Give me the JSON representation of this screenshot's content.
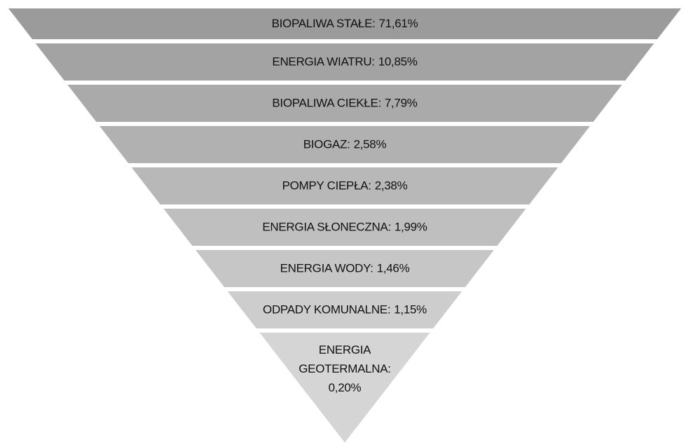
{
  "chart_data": {
    "type": "funnel",
    "categories": [
      "BIOPALIWA STAŁE:",
      "ENERGIA WIATRU:",
      "BIOPALIWA CIEKŁE:",
      "BIOGAZ:",
      "POMPY CIEPŁA:",
      "ENERGIA SŁONECZNA:",
      "ENERGIA WODY:",
      "ODPADY KOMUNALNE:",
      "ENERGIA GEOTERMALNA:"
    ],
    "values": [
      71.61,
      10.85,
      7.79,
      2.58,
      2.38,
      1.99,
      1.46,
      1.15,
      0.2
    ],
    "value_labels": [
      "71,61%",
      "10,85%",
      "7,79%",
      "2,58%",
      "2,38%",
      "1,99%",
      "1,46%",
      "1,15%",
      "0,20%"
    ],
    "colors": [
      "#9b9b9b",
      "#a3a3a3",
      "#aaaaaa",
      "#b1b1b1",
      "#b8b8b8",
      "#bfbfbf",
      "#c6c6c6",
      "#cdcdcd",
      "#d5d5d5"
    ]
  }
}
